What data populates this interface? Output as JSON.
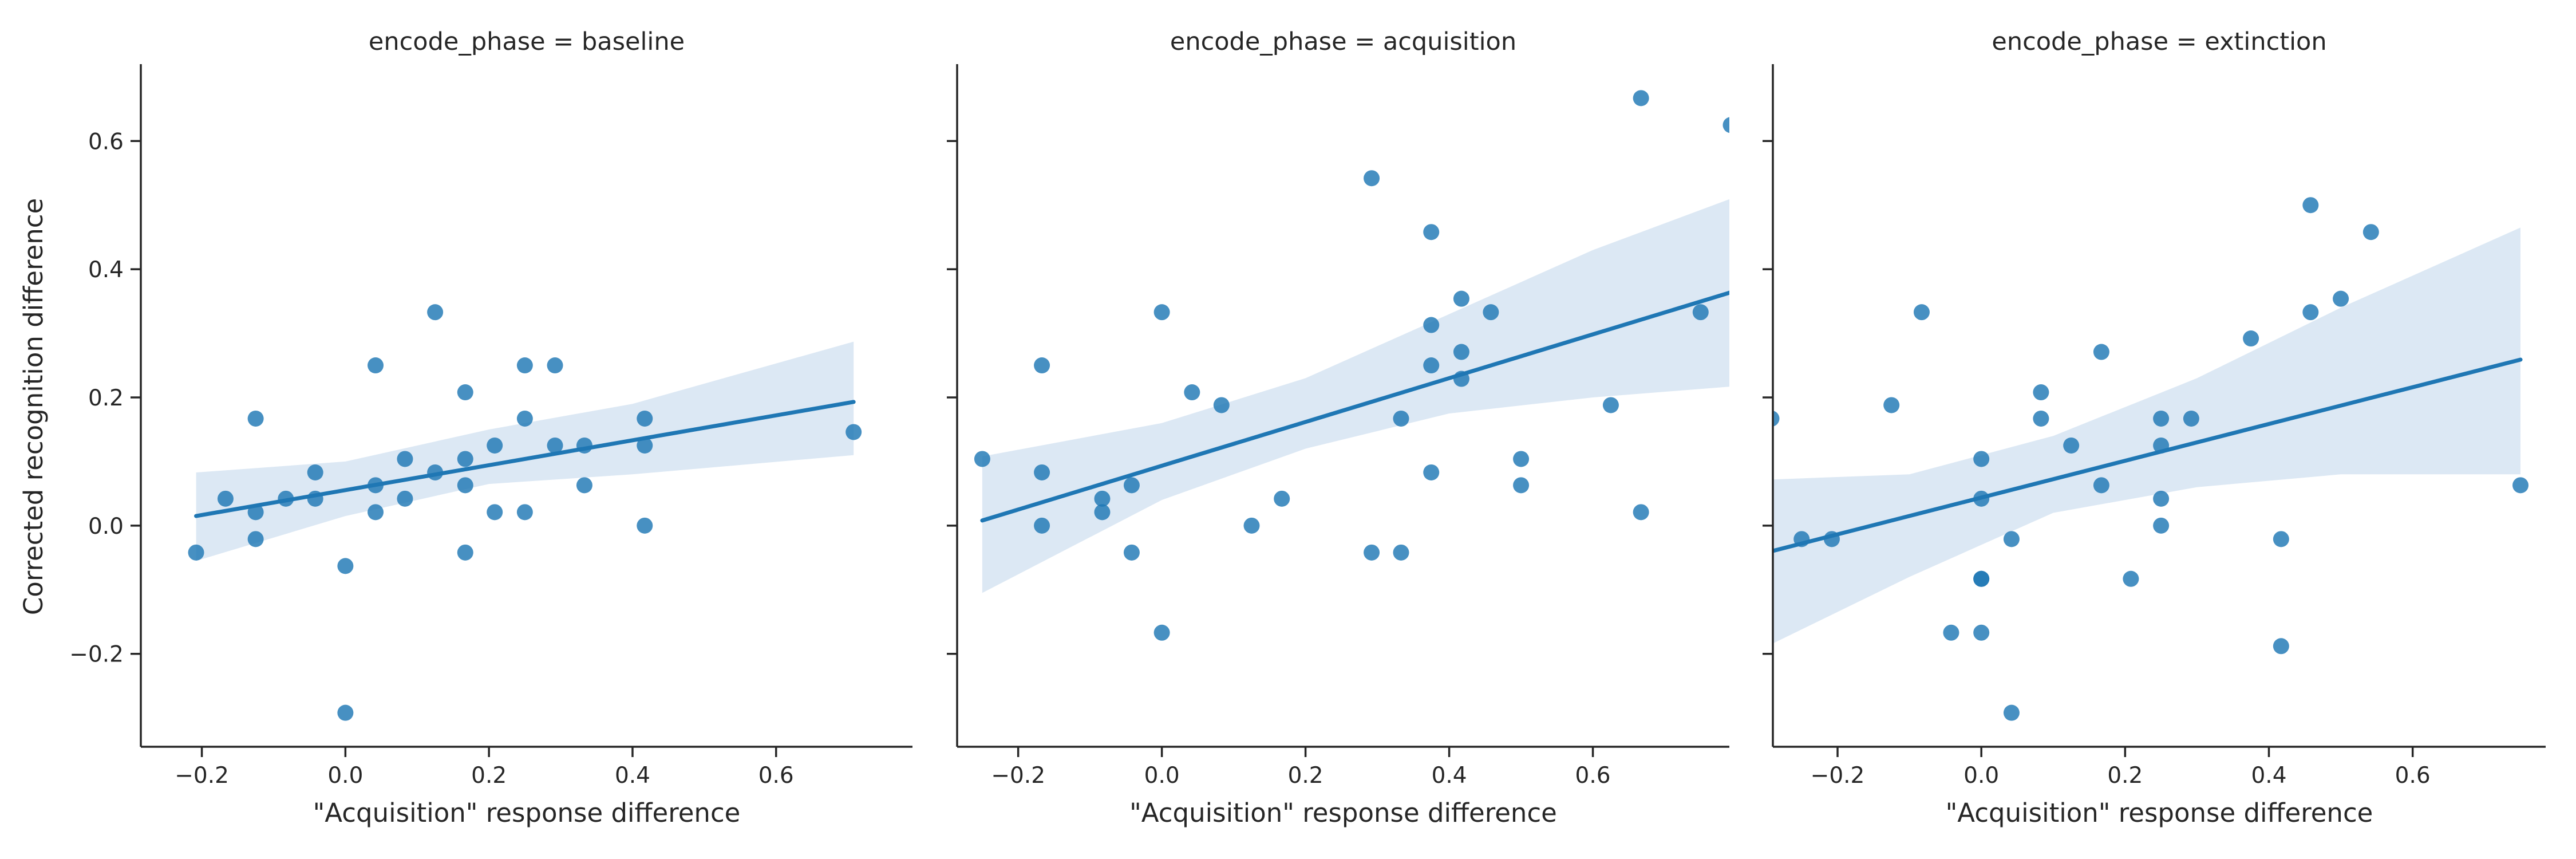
{
  "chart_data": {
    "type": "scatter",
    "ylabel": "Corrected recognition difference",
    "ylim": [
      -0.345,
      0.72
    ],
    "yticks": [
      -0.2,
      0.0,
      0.2,
      0.4,
      0.6
    ],
    "ytick_labels": [
      "−0.2",
      "0.0",
      "0.2",
      "0.4",
      "0.6"
    ],
    "sharey": true,
    "point_color": "#1f77b4",
    "band_color": "#dce8f4",
    "panels": [
      {
        "title": "encode_phase = baseline",
        "xlabel": "\"Acquisition\" response difference",
        "xlim": [
          -0.285,
          0.79
        ],
        "xticks": [
          -0.2,
          0.0,
          0.2,
          0.4,
          0.6
        ],
        "xtick_labels": [
          "−0.2",
          "0.0",
          "0.2",
          "0.4",
          "0.6"
        ],
        "points": [
          [
            -0.208,
            -0.042
          ],
          [
            -0.167,
            0.042
          ],
          [
            -0.125,
            0.167
          ],
          [
            -0.125,
            0.021
          ],
          [
            -0.125,
            -0.021
          ],
          [
            -0.083,
            0.042
          ],
          [
            -0.042,
            0.083
          ],
          [
            -0.042,
            0.042
          ],
          [
            0.0,
            -0.063
          ],
          [
            0.0,
            -0.292
          ],
          [
            0.042,
            0.25
          ],
          [
            0.042,
            0.063
          ],
          [
            0.042,
            0.021
          ],
          [
            0.083,
            0.104
          ],
          [
            0.083,
            0.042
          ],
          [
            0.125,
            0.333
          ],
          [
            0.125,
            0.083
          ],
          [
            0.167,
            0.208
          ],
          [
            0.167,
            0.104
          ],
          [
            0.167,
            0.063
          ],
          [
            0.167,
            -0.042
          ],
          [
            0.208,
            0.125
          ],
          [
            0.208,
            0.021
          ],
          [
            0.25,
            0.25
          ],
          [
            0.25,
            0.167
          ],
          [
            0.25,
            0.021
          ],
          [
            0.292,
            0.25
          ],
          [
            0.292,
            0.125
          ],
          [
            0.333,
            0.125
          ],
          [
            0.333,
            0.063
          ],
          [
            0.417,
            0.167
          ],
          [
            0.417,
            0.125
          ],
          [
            0.417,
            0.0
          ],
          [
            0.708,
            0.146
          ]
        ],
        "fit": {
          "x": [
            -0.208,
            0.708
          ],
          "y": [
            0.015,
            0.193
          ]
        },
        "ci": {
          "x": [
            -0.208,
            0.0,
            0.2,
            0.4,
            0.708
          ],
          "lo": [
            -0.055,
            0.015,
            0.065,
            0.08,
            0.11
          ],
          "hi": [
            0.083,
            0.1,
            0.15,
            0.19,
            0.287
          ]
        }
      },
      {
        "title": "encode_phase = acquisition",
        "xlabel": "\"Acquisition\" response difference",
        "xlim": [
          -0.285,
          0.79
        ],
        "xticks": [
          -0.2,
          0.0,
          0.2,
          0.4,
          0.6
        ],
        "xtick_labels": [
          "−0.2",
          "0.0",
          "0.2",
          "0.4",
          "0.6"
        ],
        "points": [
          [
            -0.25,
            0.104
          ],
          [
            -0.167,
            0.25
          ],
          [
            -0.167,
            0.083
          ],
          [
            -0.167,
            0.0
          ],
          [
            -0.083,
            0.042
          ],
          [
            -0.083,
            0.021
          ],
          [
            -0.042,
            0.063
          ],
          [
            -0.042,
            -0.042
          ],
          [
            0.0,
            0.333
          ],
          [
            0.0,
            -0.167
          ],
          [
            0.042,
            0.208
          ],
          [
            0.083,
            0.188
          ],
          [
            0.125,
            0.0
          ],
          [
            0.167,
            0.042
          ],
          [
            0.292,
            0.542
          ],
          [
            0.292,
            -0.042
          ],
          [
            0.333,
            0.167
          ],
          [
            0.333,
            -0.042
          ],
          [
            0.375,
            0.458
          ],
          [
            0.375,
            0.313
          ],
          [
            0.375,
            0.25
          ],
          [
            0.375,
            0.083
          ],
          [
            0.417,
            0.354
          ],
          [
            0.417,
            0.271
          ],
          [
            0.417,
            0.229
          ],
          [
            0.458,
            0.333
          ],
          [
            0.5,
            0.104
          ],
          [
            0.5,
            0.063
          ],
          [
            0.625,
            0.188
          ],
          [
            0.667,
            0.667
          ],
          [
            0.667,
            0.021
          ],
          [
            0.75,
            0.333
          ],
          [
            0.792,
            0.625
          ]
        ],
        "fit": {
          "x": [
            -0.25,
            0.792
          ],
          "y": [
            0.008,
            0.364
          ]
        },
        "ci": {
          "x": [
            -0.25,
            0.0,
            0.2,
            0.4,
            0.6,
            0.792
          ],
          "lo": [
            -0.105,
            0.04,
            0.12,
            0.175,
            0.2,
            0.217
          ],
          "hi": [
            0.108,
            0.16,
            0.23,
            0.33,
            0.43,
            0.51
          ]
        }
      },
      {
        "title": "encode_phase = extinction",
        "xlabel": "\"Acquisition\" response difference",
        "xlim": [
          -0.29,
          0.785
        ],
        "xticks": [
          -0.2,
          0.0,
          0.2,
          0.4,
          0.6
        ],
        "xtick_labels": [
          "−0.2",
          "0.0",
          "0.2",
          "0.4",
          "0.6"
        ],
        "points": [
          [
            -0.292,
            0.167
          ],
          [
            -0.25,
            -0.021
          ],
          [
            -0.208,
            -0.021
          ],
          [
            -0.125,
            0.188
          ],
          [
            -0.083,
            0.333
          ],
          [
            -0.042,
            -0.167
          ],
          [
            0.0,
            0.104
          ],
          [
            0.0,
            0.042
          ],
          [
            0.0,
            -0.083
          ],
          [
            0.0,
            -0.083
          ],
          [
            0.0,
            -0.167
          ],
          [
            0.042,
            -0.021
          ],
          [
            0.042,
            -0.292
          ],
          [
            0.083,
            0.208
          ],
          [
            0.083,
            0.167
          ],
          [
            0.125,
            0.125
          ],
          [
            0.167,
            0.271
          ],
          [
            0.167,
            0.063
          ],
          [
            0.208,
            -0.083
          ],
          [
            0.25,
            0.167
          ],
          [
            0.25,
            0.125
          ],
          [
            0.25,
            0.042
          ],
          [
            0.25,
            0.0
          ],
          [
            0.292,
            0.167
          ],
          [
            0.375,
            0.292
          ],
          [
            0.417,
            -0.021
          ],
          [
            0.417,
            -0.188
          ],
          [
            0.458,
            0.5
          ],
          [
            0.458,
            0.333
          ],
          [
            0.5,
            0.354
          ],
          [
            0.542,
            0.458
          ],
          [
            0.75,
            0.063
          ]
        ],
        "fit": {
          "x": [
            -0.292,
            0.75
          ],
          "y": [
            -0.04,
            0.259
          ]
        },
        "ci": {
          "x": [
            -0.292,
            -0.1,
            0.1,
            0.3,
            0.5,
            0.75
          ],
          "lo": [
            -0.185,
            -0.08,
            0.02,
            0.06,
            0.08,
            0.08
          ],
          "hi": [
            0.072,
            0.08,
            0.14,
            0.23,
            0.34,
            0.465
          ]
        }
      }
    ]
  }
}
